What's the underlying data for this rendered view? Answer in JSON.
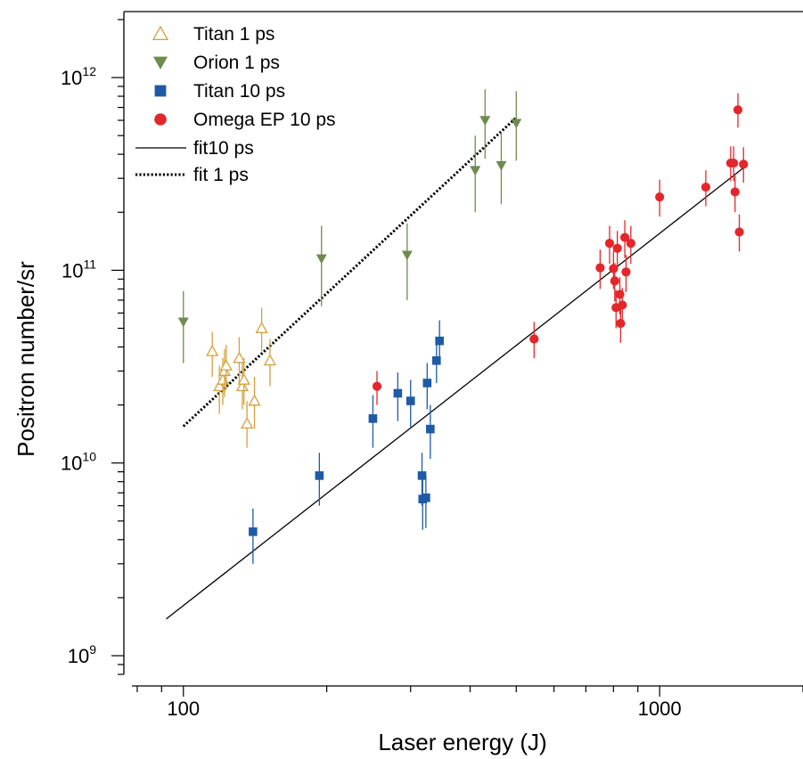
{
  "chart_data": {
    "type": "scatter",
    "xlabel": "Laser energy (J)",
    "ylabel": "Positron number/sr",
    "x_scale": "log",
    "y_scale": "log",
    "xlim": [
      75,
      2000
    ],
    "ylim": [
      800000000.0,
      2200000000000.0
    ],
    "x_ticks": [
      {
        "value": 100,
        "label": "100"
      },
      {
        "value": 1000,
        "label": "1000"
      }
    ],
    "y_ticks": [
      {
        "value": 1000000000.0,
        "base": "10",
        "exp": "9"
      },
      {
        "value": 10000000000.0,
        "base": "10",
        "exp": "10"
      },
      {
        "value": 100000000000.0,
        "base": "10",
        "exp": "11"
      },
      {
        "value": 1000000000000.0,
        "base": "10",
        "exp": "12"
      }
    ],
    "legend_position": "top-left",
    "series": [
      {
        "name": "Titan 1 ps",
        "marker": "triangle-up-open",
        "color": "#D4A13A",
        "points": [
          {
            "x": 115,
            "y": 38000000000.0,
            "lo": 28000000000.0,
            "hi": 48000000000.0
          },
          {
            "x": 119,
            "y": 25000000000.0,
            "lo": 18000000000.0,
            "hi": 32000000000.0
          },
          {
            "x": 121,
            "y": 27000000000.0,
            "lo": 20000000000.0,
            "hi": 35000000000.0
          },
          {
            "x": 122,
            "y": 30000000000.0,
            "lo": 22000000000.0,
            "hi": 39000000000.0
          },
          {
            "x": 123,
            "y": 32000000000.0,
            "lo": 24000000000.0,
            "hi": 41000000000.0
          },
          {
            "x": 131,
            "y": 35000000000.0,
            "lo": 26000000000.0,
            "hi": 45000000000.0
          },
          {
            "x": 133,
            "y": 25000000000.0,
            "lo": 19000000000.0,
            "hi": 33000000000.0
          },
          {
            "x": 134,
            "y": 27000000000.0,
            "lo": 20000000000.0,
            "hi": 35000000000.0
          },
          {
            "x": 136,
            "y": 16000000000.0,
            "lo": 12000000000.0,
            "hi": 21000000000.0
          },
          {
            "x": 141,
            "y": 21000000000.0,
            "lo": 15000000000.0,
            "hi": 28000000000.0
          },
          {
            "x": 146,
            "y": 50000000000.0,
            "lo": 38000000000.0,
            "hi": 64000000000.0
          },
          {
            "x": 152,
            "y": 34000000000.0,
            "lo": 25000000000.0,
            "hi": 44000000000.0
          }
        ]
      },
      {
        "name": "Orion 1 ps",
        "marker": "triangle-down-filled",
        "color": "#6E8B4E",
        "points": [
          {
            "x": 100,
            "y": 54000000000.0,
            "lo": 33000000000.0,
            "hi": 78000000000.0
          },
          {
            "x": 195,
            "y": 115000000000.0,
            "lo": 65000000000.0,
            "hi": 170000000000.0
          },
          {
            "x": 295,
            "y": 120000000000.0,
            "lo": 70000000000.0,
            "hi": 175000000000.0
          },
          {
            "x": 410,
            "y": 330000000000.0,
            "lo": 200000000000.0,
            "hi": 500000000000.0
          },
          {
            "x": 430,
            "y": 600000000000.0,
            "lo": 380000000000.0,
            "hi": 870000000000.0
          },
          {
            "x": 465,
            "y": 350000000000.0,
            "lo": 220000000000.0,
            "hi": 520000000000.0
          },
          {
            "x": 500,
            "y": 580000000000.0,
            "lo": 370000000000.0,
            "hi": 850000000000.0
          }
        ]
      },
      {
        "name": "Titan 10 ps",
        "marker": "square-filled",
        "color": "#1F5AA6",
        "points": [
          {
            "x": 140,
            "y": 4400000000.0,
            "lo": 3000000000.0,
            "hi": 5800000000.0
          },
          {
            "x": 193,
            "y": 8600000000.0,
            "lo": 6000000000.0,
            "hi": 11300000000.0
          },
          {
            "x": 250,
            "y": 17000000000.0,
            "lo": 12000000000.0,
            "hi": 22500000000.0
          },
          {
            "x": 282,
            "y": 23000000000.0,
            "lo": 16500000000.0,
            "hi": 29500000000.0
          },
          {
            "x": 300,
            "y": 21000000000.0,
            "lo": 15000000000.0,
            "hi": 27000000000.0
          },
          {
            "x": 317,
            "y": 8600000000.0,
            "lo": 6000000000.0,
            "hi": 11300000000.0
          },
          {
            "x": 318,
            "y": 6500000000.0,
            "lo": 4500000000.0,
            "hi": 8500000000.0
          },
          {
            "x": 323,
            "y": 6600000000.0,
            "lo": 4600000000.0,
            "hi": 8600000000.0
          },
          {
            "x": 325,
            "y": 26000000000.0,
            "lo": 19000000000.0,
            "hi": 33000000000.0
          },
          {
            "x": 330,
            "y": 15000000000.0,
            "lo": 10500000000.0,
            "hi": 20000000000.0
          },
          {
            "x": 340,
            "y": 34000000000.0,
            "lo": 26000000000.0,
            "hi": 43000000000.0
          },
          {
            "x": 345,
            "y": 43000000000.0,
            "lo": 33000000000.0,
            "hi": 55000000000.0
          }
        ]
      },
      {
        "name": "Omega EP 10 ps",
        "marker": "circle-filled",
        "color": "#E3262A",
        "points": [
          {
            "x": 255,
            "y": 25000000000.0,
            "lo": 20000000000.0,
            "hi": 30000000000.0
          },
          {
            "x": 545,
            "y": 44000000000.0,
            "lo": 35000000000.0,
            "hi": 54000000000.0
          },
          {
            "x": 750,
            "y": 103000000000.0,
            "lo": 80000000000.0,
            "hi": 128000000000.0
          },
          {
            "x": 785,
            "y": 138000000000.0,
            "lo": 108000000000.0,
            "hi": 170000000000.0
          },
          {
            "x": 800,
            "y": 102000000000.0,
            "lo": 80000000000.0,
            "hi": 126000000000.0
          },
          {
            "x": 805,
            "y": 88000000000.0,
            "lo": 69000000000.0,
            "hi": 109000000000.0
          },
          {
            "x": 810,
            "y": 64000000000.0,
            "lo": 50000000000.0,
            "hi": 79000000000.0
          },
          {
            "x": 815,
            "y": 130000000000.0,
            "lo": 102000000000.0,
            "hi": 160000000000.0
          },
          {
            "x": 825,
            "y": 75000000000.0,
            "lo": 59000000000.0,
            "hi": 92000000000.0
          },
          {
            "x": 828,
            "y": 53000000000.0,
            "lo": 42000000000.0,
            "hi": 66000000000.0
          },
          {
            "x": 835,
            "y": 66000000000.0,
            "lo": 52000000000.0,
            "hi": 81000000000.0
          },
          {
            "x": 845,
            "y": 148000000000.0,
            "lo": 116000000000.0,
            "hi": 182000000000.0
          },
          {
            "x": 850,
            "y": 98000000000.0,
            "lo": 77000000000.0,
            "hi": 120000000000.0
          },
          {
            "x": 870,
            "y": 138000000000.0,
            "lo": 108000000000.0,
            "hi": 170000000000.0
          },
          {
            "x": 1000,
            "y": 240000000000.0,
            "lo": 190000000000.0,
            "hi": 295000000000.0
          },
          {
            "x": 1250,
            "y": 270000000000.0,
            "lo": 215000000000.0,
            "hi": 330000000000.0
          },
          {
            "x": 1410,
            "y": 360000000000.0,
            "lo": 290000000000.0,
            "hi": 440000000000.0
          },
          {
            "x": 1430,
            "y": 360000000000.0,
            "lo": 290000000000.0,
            "hi": 440000000000.0
          },
          {
            "x": 1440,
            "y": 255000000000.0,
            "lo": 200000000000.0,
            "hi": 310000000000.0
          },
          {
            "x": 1460,
            "y": 680000000000.0,
            "lo": 550000000000.0,
            "hi": 830000000000.0
          },
          {
            "x": 1470,
            "y": 158000000000.0,
            "lo": 125000000000.0,
            "hi": 195000000000.0
          },
          {
            "x": 1500,
            "y": 355000000000.0,
            "lo": 285000000000.0,
            "hi": 435000000000.0
          }
        ]
      }
    ],
    "fits": [
      {
        "name": "fit10 ps",
        "style": "solid",
        "color": "#000000",
        "points": [
          {
            "x": 92,
            "y": 1550000000.0
          },
          {
            "x": 1500,
            "y": 340000000000.0
          }
        ]
      },
      {
        "name": "fit 1 ps",
        "style": "dotted",
        "color": "#000000",
        "points": [
          {
            "x": 100,
            "y": 15500000000.0
          },
          {
            "x": 500,
            "y": 620000000000.0
          }
        ]
      }
    ]
  }
}
